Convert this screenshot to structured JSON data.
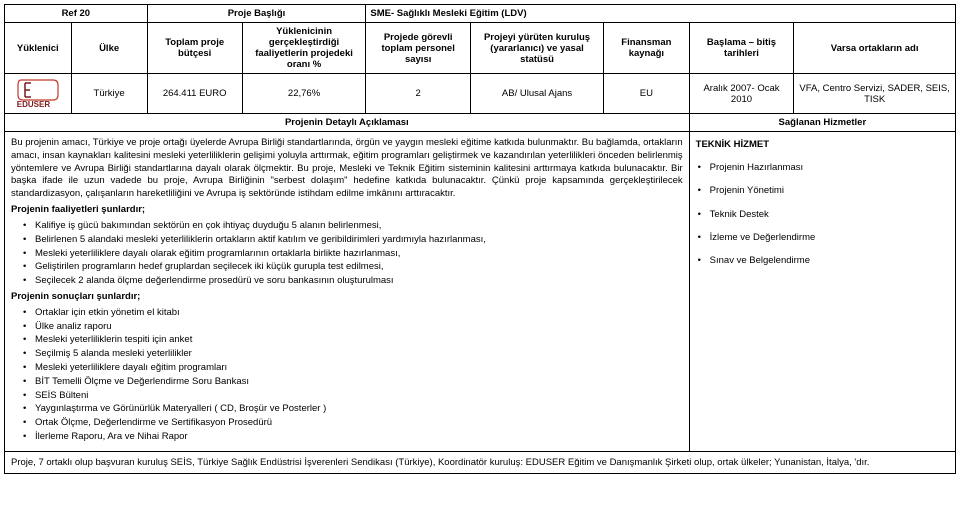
{
  "table": {
    "row1": {
      "ref": "Ref 20",
      "col2": "Proje Başlığı",
      "col3": "SME- Sağlıklı Mesleki Eğitim (LDV)"
    },
    "headers": {
      "h1": "Yüklenici",
      "h2": "Ülke",
      "h3": "Toplam proje bütçesi",
      "h4": "Yüklenicinin gerçekleştirdiği faaliyetlerin projedeki oranı %",
      "h5": "Projede görevli toplam personel sayısı",
      "h6": "Projeyi yürüten kuruluş (yararlanıcı) ve yasal statüsü",
      "h7": "Finansman kaynağı",
      "h8": "Başlama – bitiş tarihleri",
      "h9": "Varsa ortakların adı"
    },
    "data": {
      "d2": "Türkiye",
      "d3": "264.411 EURO",
      "d4": "22,76%",
      "d5": "2",
      "d6": "AB/ Ulusal Ajans",
      "d7": "EU",
      "d8": "Aralık 2007- Ocak 2010",
      "d9": "VFA, Centro Servizi, SADER, SEIS, TISK"
    },
    "section": {
      "left": "Projenin Detaylı Açıklaması",
      "right": "Sağlanan Hizmetler"
    }
  },
  "content": {
    "para1": "Bu projenin amacı, Türkiye ve proje ortağı üyelerde Avrupa Birliği standartlarında, örgün ve yaygın mesleki eğitime katkıda bulunmaktır. Bu bağlamda, ortakların amacı, insan kaynakları kalitesini mesleki yeterliliklerin gelişimi yoluyla arttırmak, eğitim programları geliştirmek ve kazandırılan yeterlilikleri önceden belirlenmiş yöntemlere ve Avrupa Birliği standartlarına dayalı olarak ölçmektir. Bu proje, Mesleki ve Teknik Eğitim sisteminin kalitesini arttırmaya katkıda bulunacaktır. Bir başka ifade ile uzun vadede bu proje, Avrupa Birliğinin \"serbest dolaşım\" hedefine katkıda bulunacaktır. Çünkü proje kapsamında gerçekleştirilecek standardizasyon, çalışanların hareketliliğini ve Avrupa iş sektöründe istihdam edilme imkânını arttıracaktır.",
    "activities_header": "Projenin faaliyetleri şunlardır;",
    "activities": [
      "Kalifiye iş gücü bakımından sektörün en çok ihtiyaç duyduğu 5 alanın belirlenmesi,",
      "Belirlenen 5 alandaki mesleki yeterliliklerin ortakların aktif katılım ve geribildirimleri yardımıyla hazırlanması,",
      "Mesleki yeterliliklere dayalı olarak eğitim programlarının ortaklarla birlikte hazırlanması,",
      "Geliştirilen programların hedef gruplardan seçilecek iki küçük gurupla test edilmesi,",
      "Seçilecek 2 alanda ölçme değerlendirme prosedürü ve soru bankasının oluşturulması"
    ],
    "results_header": "Projenin sonuçları şunlardır;",
    "results": [
      "Ortaklar için etkin yönetim el kitabı",
      "Ülke analiz raporu",
      "Mesleki yeterliliklerin tespiti için anket",
      "Seçilmiş 5 alanda mesleki yeterlilikler",
      "Mesleki yeterliliklere dayalı eğitim programları",
      "BİT Temelli Ölçme ve Değerlendirme Soru Bankası",
      "SEİS Bülteni",
      "Yaygınlaştırma ve Görünürlük Materyalleri ( CD, Broşür ve Posterler )",
      "Ortak Ölçme, Değerlendirme ve Sertifikasyon Prosedürü",
      "İlerleme Raporu, Ara ve Nihai Rapor"
    ],
    "footer": "Proje, 7 ortaklı olup başvuran kuruluş SEİS, Türkiye Sağlık Endüstrisi İşverenleri Sendikası (Türkiye), Koordinatör kuruluş: EDUSER Eğitim ve Danışmanlık Şirketi olup, ortak ülkeler; Yunanistan, İtalya, 'dır."
  },
  "services": {
    "heading": "TEKNİK HİZMET",
    "items": [
      "Projenin Hazırlanması",
      "Projenin Yönetimi",
      "Teknik Destek",
      "İzleme ve Değerlendirme",
      "Sınav ve Belgelendirme"
    ]
  },
  "colors": {
    "border": "#000000",
    "bg": "#ffffff",
    "logo_dark": "#7a1a1a",
    "logo_red": "#c0392b"
  }
}
